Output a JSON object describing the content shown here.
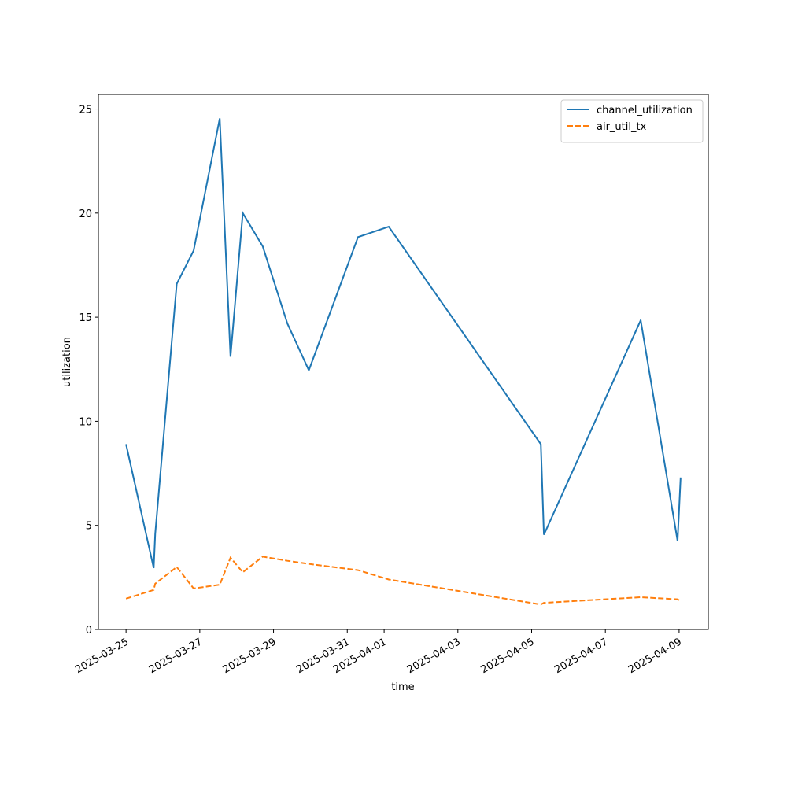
{
  "chart_data": {
    "type": "line",
    "xlabel": "time",
    "ylabel": "utilization",
    "x": [
      "2025-03-25T00:00",
      "2025-03-25T18:00",
      "2025-03-25T19:00",
      "2025-03-26T09:00",
      "2025-03-26T20:00",
      "2025-03-27T13:00",
      "2025-03-27T20:00",
      "2025-03-28T04:00",
      "2025-03-28T17:00",
      "2025-03-29T09:00",
      "2025-03-29T23:00",
      "2025-03-31T07:00",
      "2025-04-01T03:00",
      "2025-04-05T06:00",
      "2025-04-05T08:00",
      "2025-04-07T23:00",
      "2025-04-08T23:00",
      "2025-04-09T01:00"
    ],
    "series": [
      {
        "name": "channel_utilization",
        "color": "#1f77b4",
        "linestyle": "solid",
        "values": [
          8.9,
          2.95,
          4.6,
          16.6,
          18.2,
          24.55,
          13.1,
          20.0,
          18.4,
          14.7,
          12.45,
          18.85,
          19.35,
          8.9,
          4.55,
          14.85,
          4.25,
          7.3
        ]
      },
      {
        "name": "air_util_tx",
        "color": "#ff7f0e",
        "linestyle": "dashed",
        "values": [
          1.48,
          1.9,
          2.2,
          3.0,
          1.97,
          2.15,
          3.45,
          2.75,
          3.5,
          3.3,
          3.15,
          2.85,
          2.4,
          1.2,
          1.28,
          1.55,
          1.45,
          1.35
        ]
      }
    ],
    "xlim": [
      "2025-03-24T06:00",
      "2025-04-09T19:00"
    ],
    "xticks": [
      "2025-03-25",
      "2025-03-27",
      "2025-03-29",
      "2025-03-31",
      "2025-04-01",
      "2025-04-03",
      "2025-04-05",
      "2025-04-07",
      "2025-04-09"
    ],
    "ylim": [
      0,
      25.7
    ],
    "yticks": [
      0,
      5,
      10,
      15,
      20,
      25
    ],
    "legend": "upper right"
  }
}
